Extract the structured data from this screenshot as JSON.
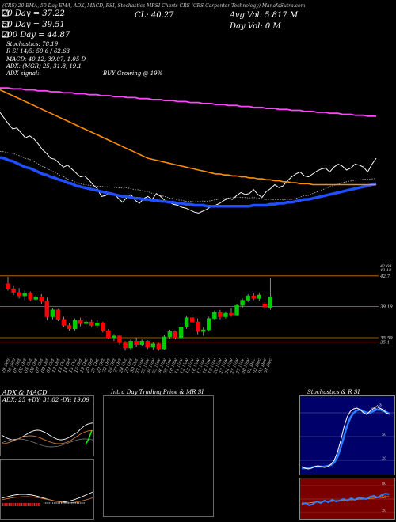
{
  "header": {
    "line1": "(CRS) 20 EMA, 50 Day EMA, ADX, MACD, RSI, Stochastics MRSI Charts CRS (CRS Carpenter Technology) ManafaSutra.com",
    "ema20": "20 Day = 37.22",
    "ema50": "50 Day = 39.51",
    "ema200": "200 Day = 44.87",
    "stoch": "Stochastics: 78.19",
    "rsi": "R                    SI 14/5: 50.6 / 62.63",
    "macd": "MACD: 40.12, 39.07, 1.05 D",
    "cl": "CL: 40.27",
    "avg_vol": "Avg Vol: 5.817 M",
    "day_vol": "Day Vol: 0   M",
    "adx": "ADX:                    (MGR) 25, 31.8, 19.1",
    "adx_signal": "ADX signal:",
    "buy": "BUY Growing @ 19%"
  },
  "colors": {
    "ema20": "#1f4fff",
    "ema50": "#ff8c00",
    "ema200": "#ff44ff",
    "price": "#ffffff",
    "up": "#00cc00",
    "down": "#ff0000",
    "level": "#cc7700",
    "stoch_bg": "#00006a",
    "rsi_bg": "#7a0000"
  },
  "chart_data": [
    {
      "type": "line",
      "x": [
        1,
        2,
        3,
        4,
        5,
        6,
        7,
        8,
        9,
        10,
        11,
        12,
        13,
        14,
        15,
        16,
        17,
        18,
        19,
        20,
        21,
        22,
        23,
        24,
        25,
        26,
        27,
        28,
        29,
        30,
        31,
        32,
        33,
        34,
        35,
        36,
        37,
        38,
        39,
        40,
        41,
        42,
        43,
        44,
        45,
        46,
        47,
        48,
        49,
        50,
        51,
        52,
        53,
        54,
        55,
        56,
        57,
        58,
        59,
        60,
        61,
        62,
        63,
        64,
        65,
        66,
        67,
        68,
        69,
        70,
        71,
        72,
        73,
        74,
        75,
        76,
        77,
        78,
        79,
        80,
        81,
        82,
        83,
        84,
        85,
        86,
        87,
        88,
        89,
        90
      ],
      "series": [
        {
          "key": "price",
          "values": [
            44.2,
            43.6,
            43.0,
            42.5,
            42.6,
            42.1,
            41.6,
            41.8,
            41.5,
            41.0,
            40.4,
            40.0,
            39.5,
            39.4,
            39.0,
            38.6,
            38.8,
            38.4,
            38.0,
            37.6,
            37.7,
            37.3,
            36.8,
            36.4,
            35.6,
            35.7,
            36.0,
            35.9,
            35.4,
            35.0,
            35.5,
            35.8,
            35.2,
            34.9,
            35.4,
            35.6,
            35.3,
            35.9,
            35.6,
            35.2,
            35.0,
            34.8,
            34.7,
            34.5,
            34.4,
            34.2,
            34.0,
            33.9,
            34.1,
            34.3,
            34.6,
            34.7,
            34.9,
            35.2,
            35.4,
            35.3,
            35.7,
            36.0,
            35.8,
            35.9,
            36.3,
            35.8,
            35.5,
            36.1,
            36.4,
            36.8,
            36.5,
            36.7,
            37.2,
            37.6,
            37.9,
            38.1,
            37.7,
            37.6,
            37.9,
            38.2,
            38.4,
            38.5,
            38.1,
            38.6,
            38.9,
            38.7,
            38.3,
            38.5,
            38.9,
            38.8,
            38.6,
            38.1,
            38.9,
            39.5
          ]
        },
        {
          "key": "ema20",
          "values": [
            39.6,
            39.5,
            39.3,
            39.2,
            39.0,
            38.8,
            38.6,
            38.5,
            38.3,
            38.1,
            37.9,
            37.8,
            37.6,
            37.5,
            37.3,
            37.2,
            37.0,
            36.9,
            36.7,
            36.6,
            36.5,
            36.4,
            36.3,
            36.2,
            36.1,
            36.0,
            35.9,
            35.8,
            35.7,
            35.6,
            35.6,
            35.5,
            35.4,
            35.4,
            35.3,
            35.3,
            35.2,
            35.2,
            35.1,
            35.1,
            35.0,
            35.0,
            34.9,
            34.9,
            34.8,
            34.8,
            34.7,
            34.7,
            34.7,
            34.6,
            34.6,
            34.6,
            34.6,
            34.6,
            34.6,
            34.6,
            34.6,
            34.6,
            34.6,
            34.6,
            34.7,
            34.7,
            34.7,
            34.7,
            34.8,
            34.8,
            34.9,
            34.9,
            35.0,
            35.0,
            35.1,
            35.2,
            35.3,
            35.3,
            35.4,
            35.5,
            35.6,
            35.7,
            35.8,
            35.9,
            36.0,
            36.1,
            36.2,
            36.3,
            36.4,
            36.5,
            36.6,
            36.7,
            36.8,
            36.9
          ]
        },
        {
          "key": "ema50",
          "values": [
            46.5,
            46.3,
            46.1,
            45.9,
            45.7,
            45.5,
            45.3,
            45.1,
            44.9,
            44.7,
            44.5,
            44.3,
            44.1,
            43.9,
            43.7,
            43.5,
            43.3,
            43.1,
            42.9,
            42.7,
            42.5,
            42.3,
            42.1,
            41.9,
            41.7,
            41.5,
            41.3,
            41.1,
            40.9,
            40.7,
            40.5,
            40.3,
            40.1,
            39.9,
            39.7,
            39.5,
            39.4,
            39.3,
            39.2,
            39.1,
            39.0,
            38.9,
            38.8,
            38.7,
            38.6,
            38.5,
            38.4,
            38.3,
            38.2,
            38.1,
            38.0,
            37.9,
            37.9,
            37.8,
            37.8,
            37.7,
            37.7,
            37.6,
            37.6,
            37.5,
            37.5,
            37.4,
            37.4,
            37.3,
            37.3,
            37.2,
            37.2,
            37.1,
            37.1,
            37.0,
            37.0,
            36.9,
            36.9,
            36.9,
            36.8,
            36.8,
            36.8,
            36.8,
            36.8,
            36.8,
            36.8,
            36.8,
            36.8,
            36.8,
            36.8,
            36.8,
            36.8,
            36.8,
            36.8,
            36.8
          ]
        },
        {
          "key": "ema200",
          "values": [
            46.7,
            46.7,
            46.7,
            46.6,
            46.6,
            46.6,
            46.5,
            46.5,
            46.5,
            46.4,
            46.4,
            46.4,
            46.3,
            46.3,
            46.3,
            46.2,
            46.2,
            46.2,
            46.1,
            46.1,
            46.1,
            46.0,
            46.0,
            46.0,
            45.9,
            45.9,
            45.9,
            45.8,
            45.8,
            45.8,
            45.7,
            45.7,
            45.7,
            45.6,
            45.6,
            45.6,
            45.5,
            45.5,
            45.5,
            45.4,
            45.4,
            45.4,
            45.3,
            45.3,
            45.3,
            45.2,
            45.2,
            45.2,
            45.1,
            45.1,
            45.1,
            45.0,
            45.0,
            45.0,
            44.9,
            44.9,
            44.9,
            44.8,
            44.8,
            44.8,
            44.7,
            44.7,
            44.7,
            44.6,
            44.6,
            44.6,
            44.5,
            44.5,
            44.5,
            44.4,
            44.4,
            44.4,
            44.3,
            44.3,
            44.3,
            44.2,
            44.2,
            44.2,
            44.1,
            44.1,
            44.1,
            44.0,
            44.0,
            44.0,
            43.9,
            43.9,
            43.9,
            43.8,
            43.8,
            43.8
          ]
        }
      ],
      "ylim": [
        29,
        48
      ]
    },
    {
      "type": "bar",
      "categories": [
        "29 Sep",
        "30 Sep",
        "01 Oct",
        "02 Oct",
        "05 Oct",
        "06 Oct",
        "07 Oct",
        "08 Oct",
        "09 Oct",
        "12 Oct",
        "13 Oct",
        "14 Oct",
        "15 Oct",
        "16 Oct",
        "19 Oct",
        "20 Oct",
        "21 Oct",
        "22 Oct",
        "23 Oct",
        "26 Oct",
        "27 Oct",
        "28 Oct",
        "29 Oct",
        "30 Oct",
        "02 Nov",
        "03 Nov",
        "04 Nov",
        "05 Nov",
        "06 Nov",
        "09 Nov",
        "10 Nov",
        "11 Nov",
        "12 Nov",
        "13 Nov",
        "16 Nov",
        "17 Nov",
        "18 Nov",
        "19 Nov",
        "20 Nov",
        "23 Nov",
        "24 Nov",
        "25 Nov",
        "27 Nov",
        "30 Nov",
        "01 Dec",
        "02 Dec",
        "03 Dec",
        "04 Dec"
      ],
      "candles": [
        {
          "o": 41.8,
          "h": 42.6,
          "l": 41.0,
          "c": 41.2
        },
        {
          "o": 41.2,
          "h": 41.6,
          "l": 40.5,
          "c": 40.8
        },
        {
          "o": 40.8,
          "h": 41.3,
          "l": 40.1,
          "c": 40.4
        },
        {
          "o": 40.4,
          "h": 41.0,
          "l": 39.9,
          "c": 40.7
        },
        {
          "o": 40.7,
          "h": 40.9,
          "l": 39.8,
          "c": 40.0
        },
        {
          "o": 40.0,
          "h": 40.5,
          "l": 39.9,
          "c": 40.3
        },
        {
          "o": 40.3,
          "h": 40.6,
          "l": 39.5,
          "c": 39.8
        },
        {
          "o": 39.8,
          "h": 40.2,
          "l": 37.6,
          "c": 38.0
        },
        {
          "o": 38.0,
          "h": 39.0,
          "l": 37.7,
          "c": 38.8
        },
        {
          "o": 38.8,
          "h": 38.9,
          "l": 37.5,
          "c": 37.7
        },
        {
          "o": 37.7,
          "h": 38.0,
          "l": 36.8,
          "c": 37.0
        },
        {
          "o": 37.0,
          "h": 37.3,
          "l": 36.4,
          "c": 36.6
        },
        {
          "o": 36.6,
          "h": 37.8,
          "l": 36.4,
          "c": 37.6
        },
        {
          "o": 37.6,
          "h": 37.9,
          "l": 36.9,
          "c": 37.2
        },
        {
          "o": 37.2,
          "h": 37.6,
          "l": 36.9,
          "c": 37.4
        },
        {
          "o": 37.4,
          "h": 37.7,
          "l": 36.8,
          "c": 37.0
        },
        {
          "o": 37.0,
          "h": 37.6,
          "l": 36.7,
          "c": 37.3
        },
        {
          "o": 37.3,
          "h": 37.4,
          "l": 36.2,
          "c": 36.4
        },
        {
          "o": 36.4,
          "h": 36.6,
          "l": 35.4,
          "c": 35.6
        },
        {
          "o": 35.6,
          "h": 36.0,
          "l": 35.2,
          "c": 35.8
        },
        {
          "o": 35.8,
          "h": 35.9,
          "l": 34.8,
          "c": 35.0
        },
        {
          "o": 35.0,
          "h": 35.2,
          "l": 34.1,
          "c": 34.4
        },
        {
          "o": 34.4,
          "h": 35.4,
          "l": 34.2,
          "c": 35.2
        },
        {
          "o": 35.2,
          "h": 35.6,
          "l": 34.5,
          "c": 34.8
        },
        {
          "o": 34.8,
          "h": 35.4,
          "l": 34.6,
          "c": 35.2
        },
        {
          "o": 35.2,
          "h": 35.3,
          "l": 34.3,
          "c": 34.5
        },
        {
          "o": 34.5,
          "h": 35.1,
          "l": 34.2,
          "c": 34.9
        },
        {
          "o": 34.9,
          "h": 35.0,
          "l": 34.1,
          "c": 34.3
        },
        {
          "o": 34.3,
          "h": 35.9,
          "l": 34.2,
          "c": 35.7
        },
        {
          "o": 35.7,
          "h": 36.5,
          "l": 35.5,
          "c": 36.3
        },
        {
          "o": 36.3,
          "h": 36.4,
          "l": 35.4,
          "c": 35.6
        },
        {
          "o": 35.6,
          "h": 37.0,
          "l": 35.5,
          "c": 36.8
        },
        {
          "o": 36.8,
          "h": 38.1,
          "l": 36.6,
          "c": 37.9
        },
        {
          "o": 37.9,
          "h": 38.3,
          "l": 37.2,
          "c": 37.4
        },
        {
          "o": 37.4,
          "h": 37.8,
          "l": 36.0,
          "c": 36.3
        },
        {
          "o": 36.3,
          "h": 36.8,
          "l": 35.8,
          "c": 36.5
        },
        {
          "o": 36.5,
          "h": 38.0,
          "l": 36.3,
          "c": 37.8
        },
        {
          "o": 37.8,
          "h": 38.7,
          "l": 37.6,
          "c": 38.5
        },
        {
          "o": 38.5,
          "h": 38.8,
          "l": 37.7,
          "c": 38.0
        },
        {
          "o": 38.0,
          "h": 38.6,
          "l": 37.8,
          "c": 38.4
        },
        {
          "o": 38.4,
          "h": 39.0,
          "l": 38.0,
          "c": 38.2
        },
        {
          "o": 38.2,
          "h": 39.5,
          "l": 38.1,
          "c": 39.3
        },
        {
          "o": 39.3,
          "h": 40.1,
          "l": 39.0,
          "c": 39.9
        },
        {
          "o": 39.9,
          "h": 40.6,
          "l": 39.7,
          "c": 40.4
        },
        {
          "o": 40.4,
          "h": 40.7,
          "l": 39.9,
          "c": 40.1
        },
        {
          "o": 40.1,
          "h": 40.8,
          "l": 39.8,
          "c": 40.5
        },
        {
          "o": 39.5,
          "h": 39.7,
          "l": 38.8,
          "c": 39.1
        },
        {
          "o": 39.0,
          "h": 42.4,
          "l": 38.8,
          "c": 40.3
        }
      ],
      "ylim": [
        33.5,
        43.5
      ],
      "levels": [
        {
          "value": 42.7,
          "label": "42.7"
        },
        {
          "value": 39.19,
          "label": "39.19"
        },
        {
          "value": 35.59,
          "label": "35.59"
        },
        {
          "value": 35.1,
          "label": "35.1"
        }
      ],
      "top_labels": [
        "42.69",
        "43.18"
      ]
    },
    {
      "type": "line",
      "title": "ADX  & MACD",
      "subtitle": "ADX: 25  +DY: 31.82  -DY: 19.09"
    },
    {
      "type": "line",
      "title": "Intra Day Trading Price  & MR                    SI"
    },
    {
      "type": "line",
      "title": "Stochastics & R                    SI",
      "tick_labels": [
        "80",
        "50",
        "20"
      ],
      "value_label": "78.19",
      "rsi_tick_labels": [
        "80",
        "50",
        "20"
      ]
    }
  ]
}
